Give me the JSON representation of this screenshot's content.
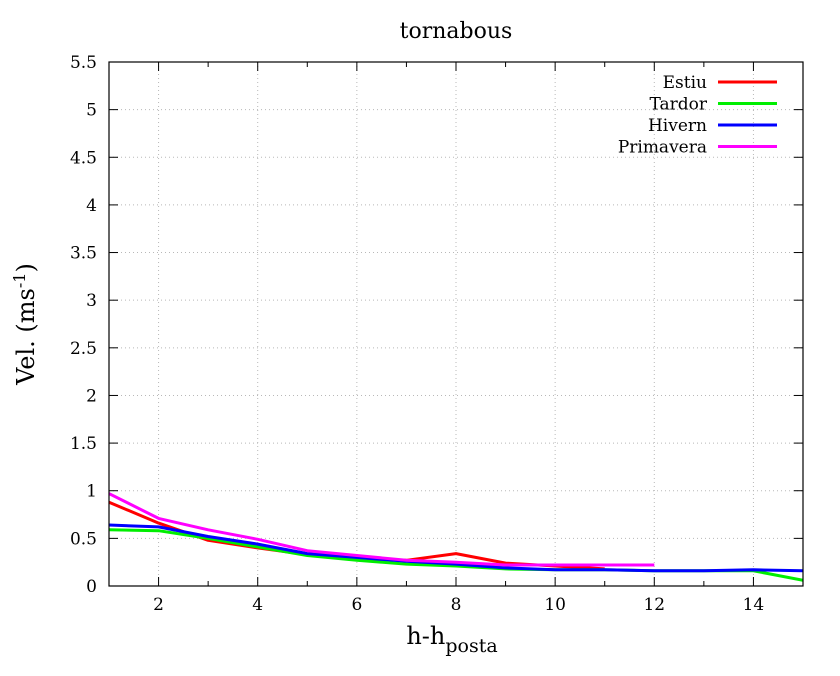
{
  "chart_data": {
    "type": "line",
    "title": "tornabous",
    "xlabel": {
      "base": "h-h",
      "subscript": "posta"
    },
    "ylabel": {
      "base": "Vel. (ms",
      "superscript": "-1",
      "suffix": ")"
    },
    "xlim": [
      1,
      15
    ],
    "ylim": [
      0,
      5.5
    ],
    "xticks": [
      2,
      4,
      6,
      8,
      10,
      12,
      14
    ],
    "yticks": [
      0,
      0.5,
      1,
      1.5,
      2,
      2.5,
      3,
      3.5,
      4,
      4.5,
      5,
      5.5
    ],
    "ytick_labels": [
      "0",
      "0.5",
      "1",
      "1.5",
      "2",
      "2.5",
      "3",
      "3.5",
      "4",
      "4.5",
      "5",
      "5.5"
    ],
    "grid": true,
    "legend_position": "top-right",
    "series": [
      {
        "name": "Estiu",
        "color": "#ff0000",
        "x": [
          1,
          2,
          3,
          4,
          5,
          6,
          7,
          8,
          9,
          10,
          11
        ],
        "y": [
          0.88,
          0.66,
          0.48,
          0.4,
          0.33,
          0.29,
          0.27,
          0.34,
          0.24,
          0.21,
          0.18
        ]
      },
      {
        "name": "Tardor",
        "color": "#00ee00",
        "x": [
          1,
          2,
          3,
          4,
          5,
          6,
          7,
          8,
          9,
          10,
          11,
          12,
          13,
          14,
          15
        ],
        "y": [
          0.59,
          0.58,
          0.5,
          0.41,
          0.32,
          0.27,
          0.23,
          0.21,
          0.18,
          0.17,
          0.17,
          0.16,
          0.16,
          0.16,
          0.06
        ]
      },
      {
        "name": "Hivern",
        "color": "#0000ff",
        "x": [
          1,
          2,
          3,
          4,
          5,
          6,
          7,
          8,
          9,
          10,
          11,
          12,
          13,
          14,
          15
        ],
        "y": [
          0.64,
          0.62,
          0.52,
          0.44,
          0.34,
          0.3,
          0.26,
          0.23,
          0.19,
          0.17,
          0.17,
          0.16,
          0.16,
          0.17,
          0.16
        ]
      },
      {
        "name": "Primavera",
        "color": "#ff00ff",
        "x": [
          1,
          2,
          3,
          4,
          5,
          6,
          7,
          8,
          9,
          10,
          11,
          12
        ],
        "y": [
          0.97,
          0.71,
          0.59,
          0.49,
          0.37,
          0.32,
          0.27,
          0.25,
          0.22,
          0.22,
          0.22,
          0.22
        ]
      }
    ]
  }
}
